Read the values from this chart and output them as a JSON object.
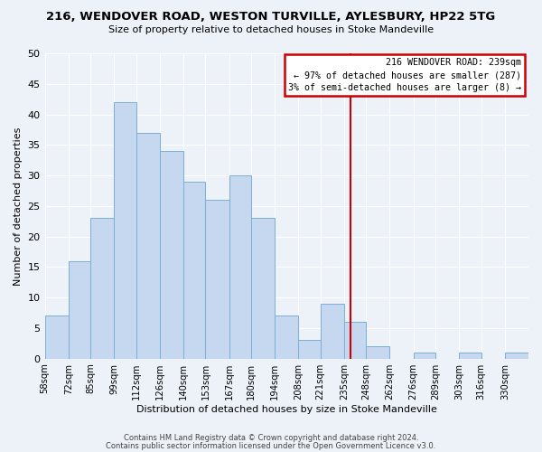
{
  "title": "216, WENDOVER ROAD, WESTON TURVILLE, AYLESBURY, HP22 5TG",
  "subtitle": "Size of property relative to detached houses in Stoke Mandeville",
  "xlabel": "Distribution of detached houses by size in Stoke Mandeville",
  "ylabel": "Number of detached properties",
  "bin_labels": [
    "58sqm",
    "72sqm",
    "85sqm",
    "99sqm",
    "112sqm",
    "126sqm",
    "140sqm",
    "153sqm",
    "167sqm",
    "180sqm",
    "194sqm",
    "208sqm",
    "221sqm",
    "235sqm",
    "248sqm",
    "262sqm",
    "276sqm",
    "289sqm",
    "303sqm",
    "316sqm",
    "330sqm"
  ],
  "bin_edges": [
    58,
    72,
    85,
    99,
    112,
    126,
    140,
    153,
    167,
    180,
    194,
    208,
    221,
    235,
    248,
    262,
    276,
    289,
    303,
    316,
    330
  ],
  "counts": [
    7,
    16,
    23,
    42,
    37,
    34,
    29,
    26,
    30,
    23,
    7,
    3,
    9,
    6,
    2,
    0,
    1,
    0,
    1,
    0,
    1
  ],
  "bar_color": "#c5d8f0",
  "bar_edge_color": "#7bafd4",
  "reference_line_x": 239,
  "reference_line_color": "#cc0000",
  "box_text_line1": "216 WENDOVER ROAD: 239sqm",
  "box_text_line2": "← 97% of detached houses are smaller (287)",
  "box_text_line3": "3% of semi-detached houses are larger (8) →",
  "box_color": "#cc0000",
  "ylim": [
    0,
    50
  ],
  "yticks": [
    0,
    5,
    10,
    15,
    20,
    25,
    30,
    35,
    40,
    45,
    50
  ],
  "footnote1": "Contains HM Land Registry data © Crown copyright and database right 2024.",
  "footnote2": "Contains public sector information licensed under the Open Government Licence v3.0.",
  "bg_color": "#edf2f9",
  "grid_color": "#ffffff"
}
